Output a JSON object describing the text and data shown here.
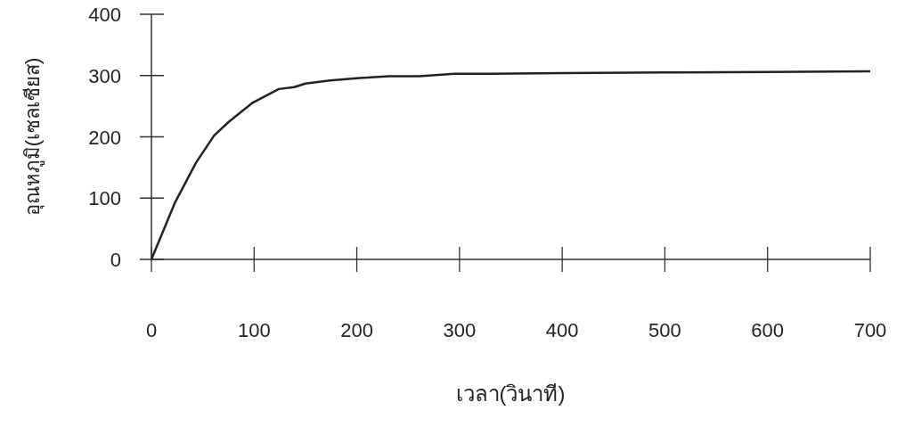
{
  "chart_data": {
    "type": "line",
    "xlabel": "เวลา(วินาที)",
    "ylabel": "อุณหภูมิ(เซลเซียส)",
    "xlim": [
      0,
      700
    ],
    "xticks": [
      0,
      100,
      200,
      300,
      400,
      500,
      600,
      700
    ],
    "ylim": [
      0,
      400
    ],
    "yticks": [
      0,
      100,
      200,
      300,
      400
    ],
    "grid": false,
    "marker": "none",
    "line_style": "solid",
    "series": [
      {
        "color": "#222222",
        "x": [
          0,
          23,
          43.5,
          61,
          75,
          98,
          124,
          139,
          150,
          174,
          203,
          232,
          261,
          296,
          330,
          400,
          500,
          600,
          700
        ],
        "values": [
          0,
          93,
          158,
          202,
          224,
          255,
          278,
          281,
          287,
          292,
          296,
          299,
          299,
          303,
          303,
          304,
          305,
          306,
          307
        ]
      }
    ]
  }
}
